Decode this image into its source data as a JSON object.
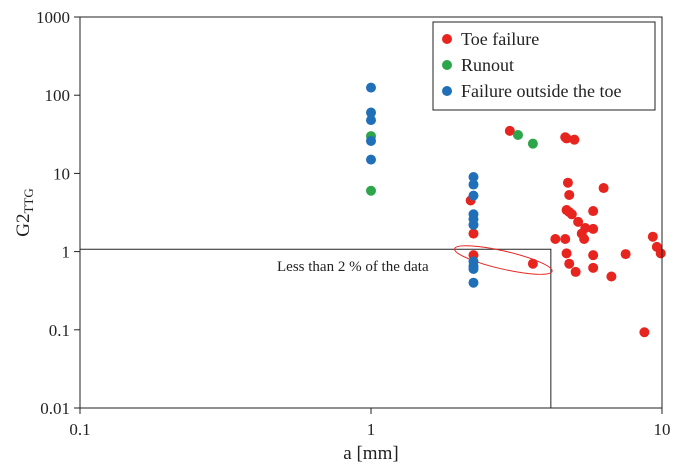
{
  "chart_data": {
    "type": "scatter",
    "x_scale": "log",
    "y_scale": "log",
    "xlim": [
      0.1,
      10
    ],
    "ylim": [
      0.01,
      1000
    ],
    "xlabel": "a [mm]",
    "ylabel_main": "G2",
    "ylabel_sub": "TTG",
    "x_ticks": [
      {
        "value": 0.1,
        "label": "0.1"
      },
      {
        "value": 1,
        "label": "1"
      },
      {
        "value": 10,
        "label": "10"
      }
    ],
    "y_ticks": [
      {
        "value": 0.01,
        "label": "0.01"
      },
      {
        "value": 0.1,
        "label": "0.1"
      },
      {
        "value": 1,
        "label": "1"
      },
      {
        "value": 10,
        "label": "10"
      },
      {
        "value": 100,
        "label": "100"
      },
      {
        "value": 1000,
        "label": "1000"
      }
    ],
    "grid": false,
    "legend_position": "top-right",
    "series": [
      {
        "name": "Toe failure",
        "color": "#e8241f",
        "points": [
          [
            2.2,
            4.5
          ],
          [
            2.25,
            1.7
          ],
          [
            2.25,
            0.9
          ],
          [
            3.0,
            35
          ],
          [
            3.6,
            0.7
          ],
          [
            4.3,
            1.45
          ],
          [
            4.65,
            29
          ],
          [
            4.7,
            28
          ],
          [
            5.0,
            27
          ],
          [
            4.7,
            3.4
          ],
          [
            4.75,
            7.6
          ],
          [
            4.8,
            5.3
          ],
          [
            4.8,
            3.2
          ],
          [
            4.9,
            3.0
          ],
          [
            4.65,
            1.45
          ],
          [
            4.7,
            0.95
          ],
          [
            4.8,
            0.7
          ],
          [
            5.05,
            0.55
          ],
          [
            5.15,
            2.4
          ],
          [
            5.3,
            1.7
          ],
          [
            5.4,
            1.45
          ],
          [
            5.45,
            2.0
          ],
          [
            5.8,
            3.3
          ],
          [
            5.8,
            1.95
          ],
          [
            5.8,
            0.9
          ],
          [
            5.8,
            0.62
          ],
          [
            6.3,
            6.5
          ],
          [
            6.7,
            0.48
          ],
          [
            7.5,
            0.93
          ],
          [
            8.7,
            0.093
          ],
          [
            9.3,
            1.55
          ],
          [
            9.6,
            1.15
          ],
          [
            9.9,
            0.95
          ]
        ]
      },
      {
        "name": "Runout",
        "color": "#2ca54b",
        "points": [
          [
            1.0,
            6
          ],
          [
            1.0,
            30
          ],
          [
            3.2,
            31
          ],
          [
            3.6,
            24
          ]
        ]
      },
      {
        "name": "Failure outside the toe",
        "color": "#1f70b8",
        "points": [
          [
            1.0,
            125
          ],
          [
            1.0,
            60
          ],
          [
            1.0,
            48
          ],
          [
            1.0,
            26
          ],
          [
            1.0,
            15
          ],
          [
            2.25,
            9
          ],
          [
            2.25,
            7.2
          ],
          [
            2.25,
            5.2
          ],
          [
            2.25,
            3.0
          ],
          [
            2.25,
            2.6
          ],
          [
            2.25,
            2.2
          ],
          [
            2.25,
            0.75
          ],
          [
            2.25,
            0.65
          ],
          [
            2.25,
            0.6
          ],
          [
            2.25,
            0.4
          ]
        ]
      }
    ],
    "annotation": {
      "text": "Less than 2 % of the data",
      "threshold_y": 1.07,
      "threshold_x": 4.15,
      "ellipse_center": [
        2.85,
        0.78
      ],
      "ellipse_color": "#e8241f"
    }
  }
}
